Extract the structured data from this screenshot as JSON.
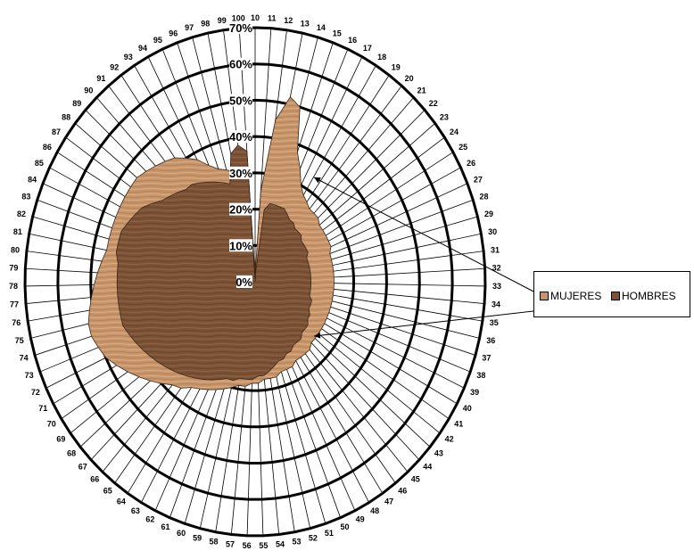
{
  "chart_data": {
    "type": "radar",
    "categories": [
      "10",
      "11",
      "12",
      "13",
      "14",
      "15",
      "16",
      "17",
      "18",
      "19",
      "20",
      "21",
      "22",
      "23",
      "24",
      "25",
      "26",
      "27",
      "28",
      "29",
      "30",
      "31",
      "32",
      "33",
      "34",
      "35",
      "36",
      "37",
      "38",
      "39",
      "40",
      "41",
      "42",
      "43",
      "44",
      "45",
      "46",
      "47",
      "48",
      "49",
      "50",
      "51",
      "52",
      "53",
      "54",
      "55",
      "56",
      "57",
      "58",
      "59",
      "60",
      "61",
      "62",
      "63",
      "64",
      "65",
      "66",
      "67",
      "68",
      "69",
      "70",
      "71",
      "72",
      "73",
      "74",
      "75",
      "76",
      "77",
      "78",
      "79",
      "80",
      "81",
      "82",
      "83",
      "84",
      "85",
      "86",
      "87",
      "88",
      "89",
      "90",
      "91",
      "92",
      "93",
      "94",
      "95",
      "96",
      "97",
      "98",
      "99",
      "100"
    ],
    "radial_ticks": [
      "0%",
      "10%",
      "20%",
      "30%",
      "40%",
      "50%",
      "60%",
      "70%"
    ],
    "rmax": 70,
    "series": [
      {
        "name": "MUJERES",
        "color": "#c8956a",
        "values": [
          2,
          25,
          45,
          52,
          50,
          38,
          34,
          30,
          28,
          27,
          26,
          26,
          26,
          25,
          25,
          25,
          25,
          25,
          24,
          24,
          24,
          24,
          24,
          24,
          24,
          24,
          24,
          24,
          24,
          24,
          24,
          24,
          24,
          24,
          24,
          25,
          25,
          25,
          25,
          26,
          26,
          26,
          27,
          27,
          27,
          28,
          28,
          29,
          29,
          30,
          31,
          32,
          33,
          34,
          35,
          37,
          38,
          40,
          42,
          44,
          46,
          48,
          50,
          51,
          52,
          52,
          51,
          50,
          49,
          48,
          47,
          46,
          46,
          46,
          46,
          46,
          46,
          46,
          46,
          45,
          44,
          43,
          42,
          40,
          38,
          35,
          33,
          32,
          31,
          30,
          28
        ]
      },
      {
        "name": "HOMBRES",
        "color": "#7b5235",
        "values": [
          0,
          3,
          20,
          22,
          22,
          22,
          22,
          21,
          20,
          20,
          19,
          19,
          19,
          18,
          18,
          18,
          18,
          17,
          17,
          17,
          17,
          17,
          17,
          17,
          17,
          17,
          17,
          18,
          18,
          18,
          19,
          19,
          20,
          20,
          20,
          21,
          21,
          21,
          22,
          22,
          23,
          23,
          24,
          25,
          26,
          26,
          27,
          27,
          27,
          28,
          28,
          29,
          30,
          31,
          32,
          33,
          34,
          35,
          36,
          37,
          38,
          39,
          40,
          41,
          42,
          42,
          42,
          42,
          42,
          42,
          42,
          43,
          43,
          43,
          42,
          41,
          40,
          38,
          36,
          35,
          34,
          33,
          33,
          32,
          31,
          30,
          29,
          28,
          36,
          38,
          36
        ]
      }
    ],
    "legend": {
      "position": "right",
      "items": [
        {
          "label": "MUJERES",
          "color": "#c8956a"
        },
        {
          "label": "HOMBRES",
          "color": "#7b5235"
        }
      ]
    }
  }
}
